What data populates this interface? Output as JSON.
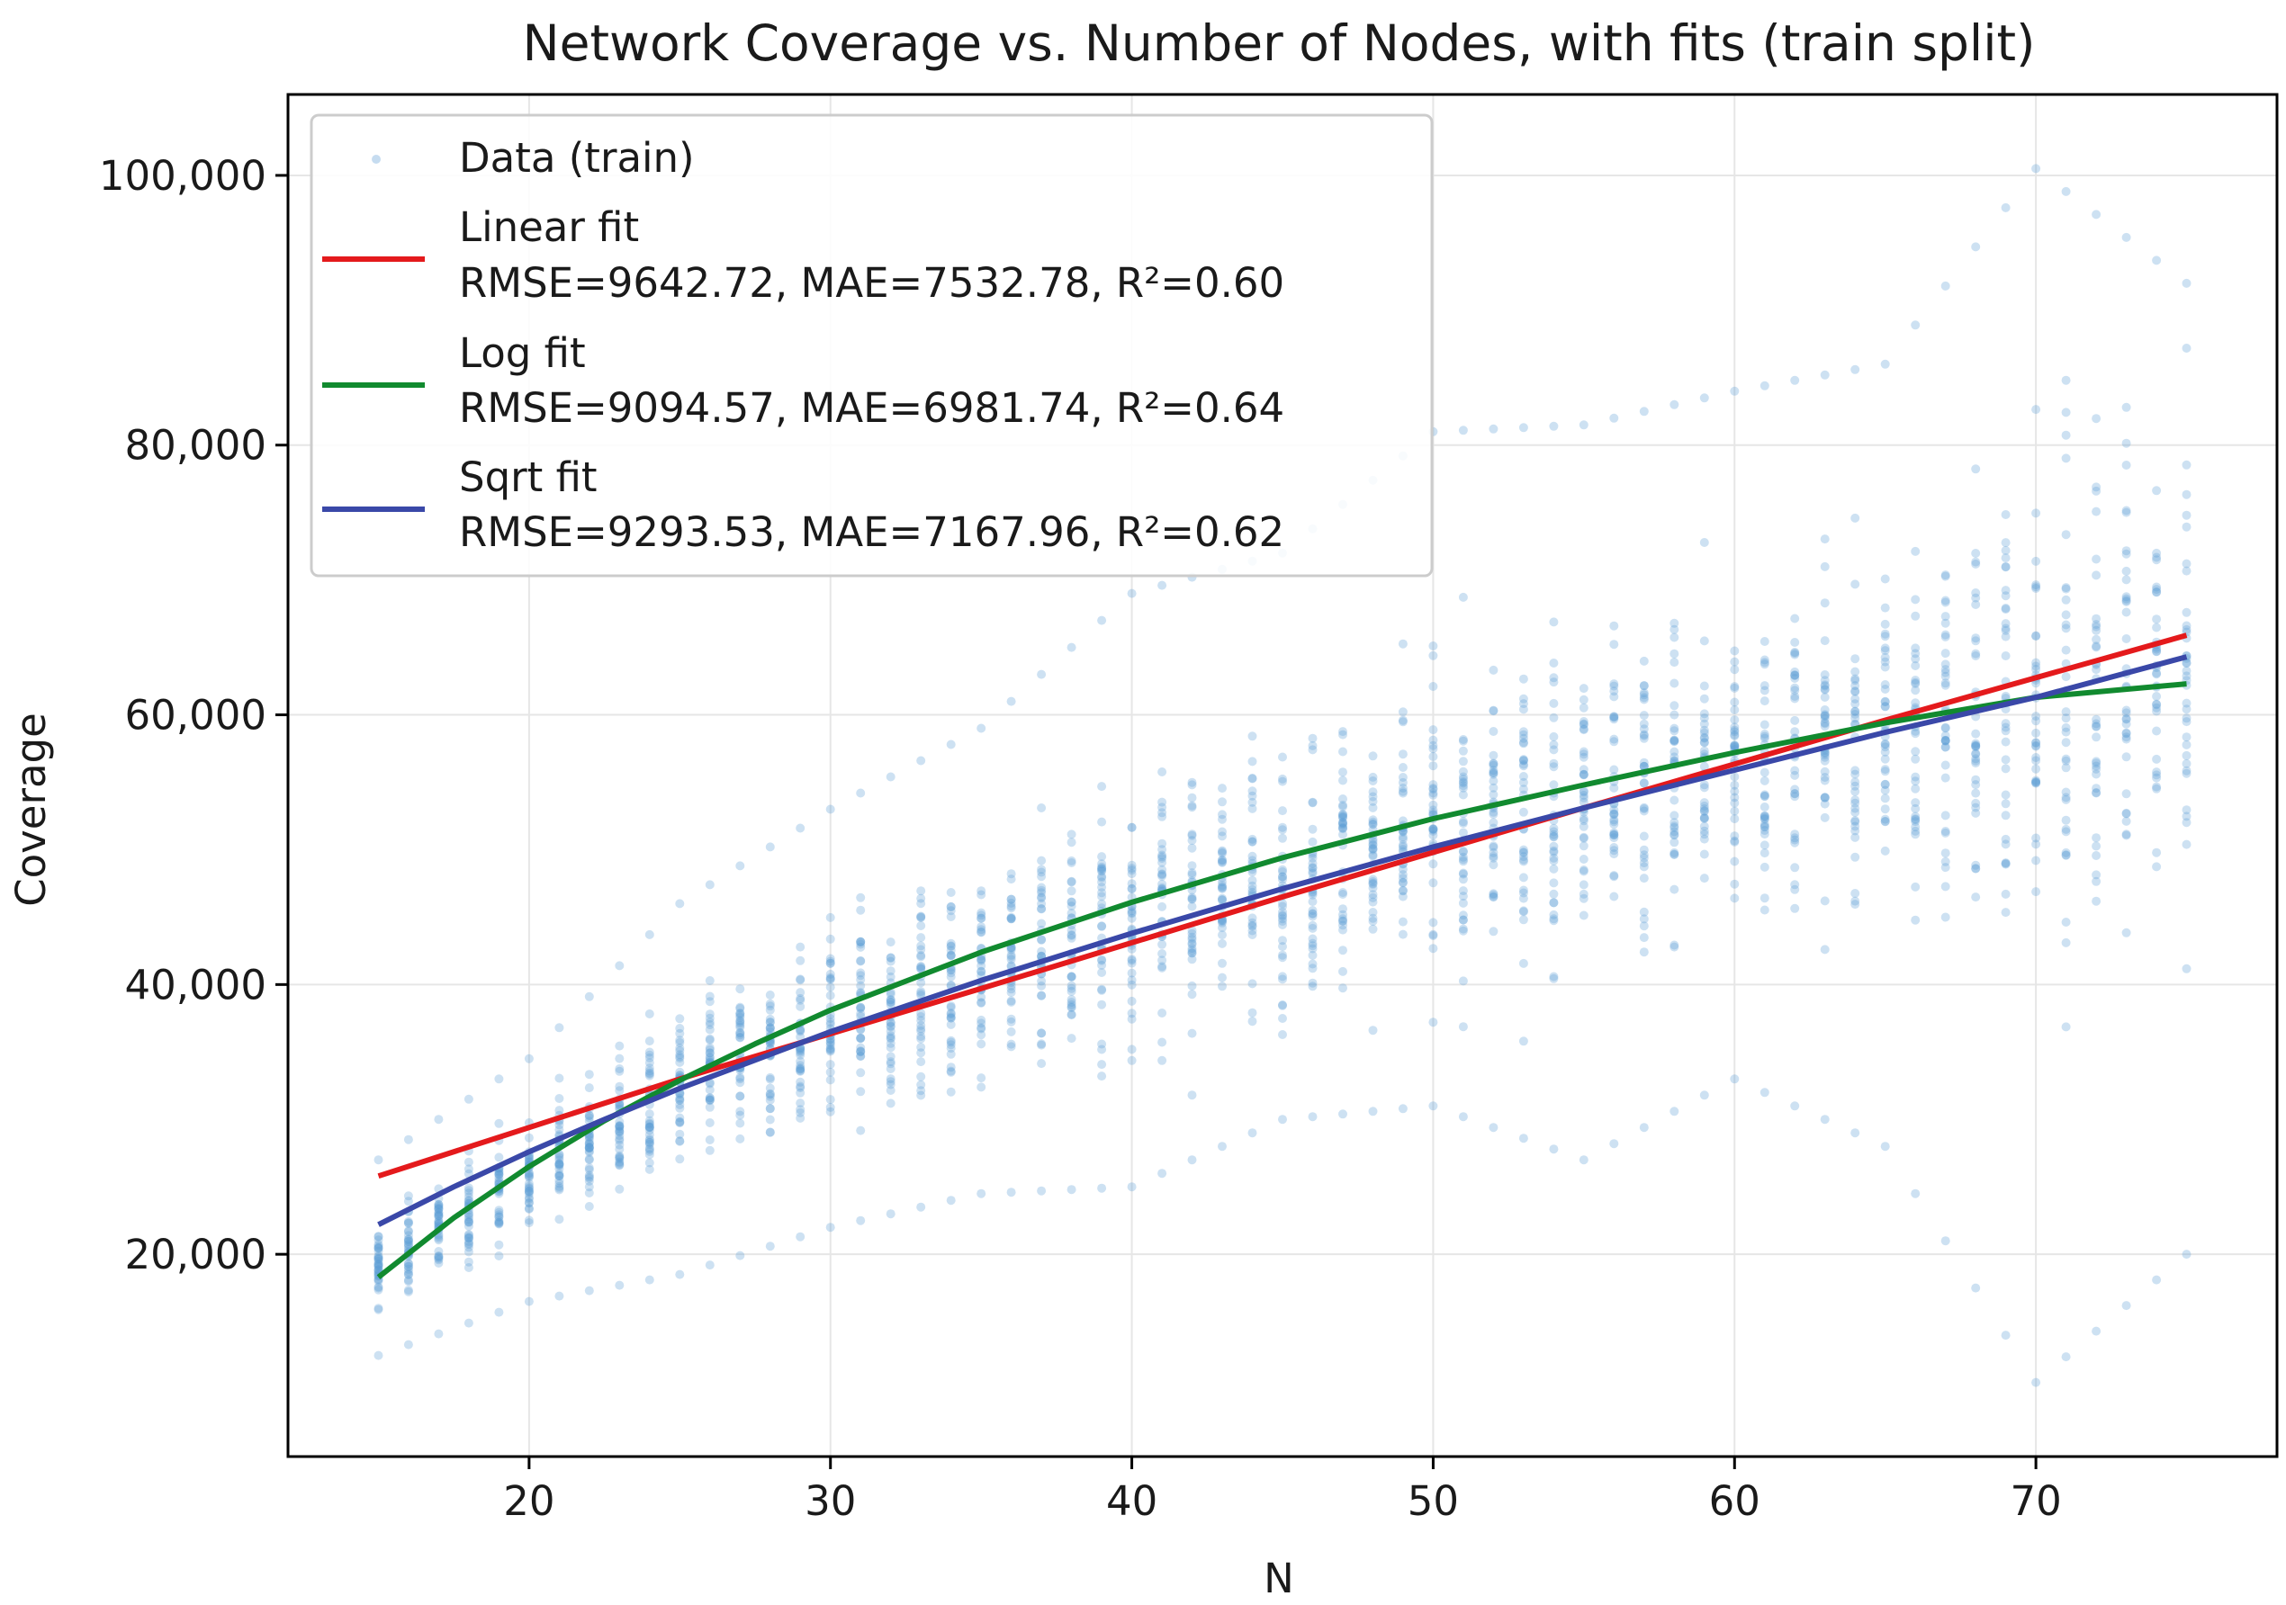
{
  "chart_data": {
    "type": "scatter",
    "title": "Network Coverage vs. Number of Nodes, with fits (train split)",
    "xlabel": "N",
    "ylabel": "Coverage",
    "xlim": [
      12,
      78
    ],
    "ylim": [
      5000,
      106000
    ],
    "grid": true,
    "legend_position": "top-left",
    "x_ticks": [
      20,
      30,
      40,
      50,
      60,
      70
    ],
    "x_tick_labels": [
      "20",
      "30",
      "40",
      "50",
      "60",
      "70"
    ],
    "y_ticks": [
      20000,
      40000,
      60000,
      80000,
      100000
    ],
    "y_tick_labels": [
      "20,000",
      "40,000",
      "60,000",
      "80,000",
      "100,000"
    ],
    "scatter": {
      "name": "Data (train)",
      "color": "#5b9bd5",
      "x_range": [
        15,
        75
      ],
      "summary_by_N": [
        {
          "N": 15,
          "mean": 19000,
          "min": 12500,
          "max": 27000
        },
        {
          "N": 20,
          "mean": 26000,
          "min": 16500,
          "max": 34500
        },
        {
          "N": 25,
          "mean": 32000,
          "min": 18500,
          "max": 46000
        },
        {
          "N": 30,
          "mean": 37000,
          "min": 22000,
          "max": 53000
        },
        {
          "N": 35,
          "mean": 41000,
          "min": 24500,
          "max": 59000
        },
        {
          "N": 40,
          "mean": 45000,
          "min": 25000,
          "max": 69000
        },
        {
          "N": 45,
          "mean": 48500,
          "min": 30000,
          "max": 72000
        },
        {
          "N": 50,
          "mean": 51000,
          "min": 31000,
          "max": 81000
        },
        {
          "N": 55,
          "mean": 54000,
          "min": 27000,
          "max": 81500
        },
        {
          "N": 60,
          "mean": 56500,
          "min": 33000,
          "max": 84000
        },
        {
          "N": 65,
          "mean": 59000,
          "min": 28000,
          "max": 86000
        },
        {
          "N": 70,
          "mean": 61000,
          "min": 10500,
          "max": 100500
        },
        {
          "N": 75,
          "mean": 62500,
          "min": 20000,
          "max": 92000
        }
      ]
    },
    "series": [
      {
        "name": "Linear fit",
        "metrics": "RMSE=9642.72, MAE=7532.78, R²=0.60",
        "color": "#e41a1c",
        "x": [
          15,
          25,
          35,
          45,
          55,
          65,
          75
        ],
        "y": [
          25800,
          33000,
          39700,
          46500,
          53100,
          59600,
          65900
        ]
      },
      {
        "name": "Log fit",
        "metrics": "RMSE=9094.57, MAE=6981.74, R²=0.64",
        "color": "#118a2f",
        "x": [
          15,
          17.5,
          20,
          22.5,
          25,
          27.5,
          30,
          35,
          40,
          45,
          50,
          55,
          60,
          65,
          70,
          75
        ],
        "y": [
          18300,
          22700,
          26500,
          29900,
          32900,
          35600,
          38100,
          42400,
          46100,
          49400,
          52300,
          54800,
          57200,
          59400,
          61300,
          62300
        ]
      },
      {
        "name": "Sqrt fit",
        "metrics": "RMSE=9293.53, MAE=7167.96, R²=0.62",
        "color": "#3a48a8",
        "x": [
          15,
          17.5,
          20,
          22.5,
          25,
          27.5,
          30,
          35,
          40,
          45,
          50,
          55,
          60,
          65,
          70,
          75
        ],
        "y": [
          22200,
          25000,
          27600,
          30000,
          32300,
          34400,
          36500,
          40300,
          43800,
          47100,
          50200,
          53100,
          55900,
          58700,
          61300,
          64300
        ]
      }
    ]
  }
}
